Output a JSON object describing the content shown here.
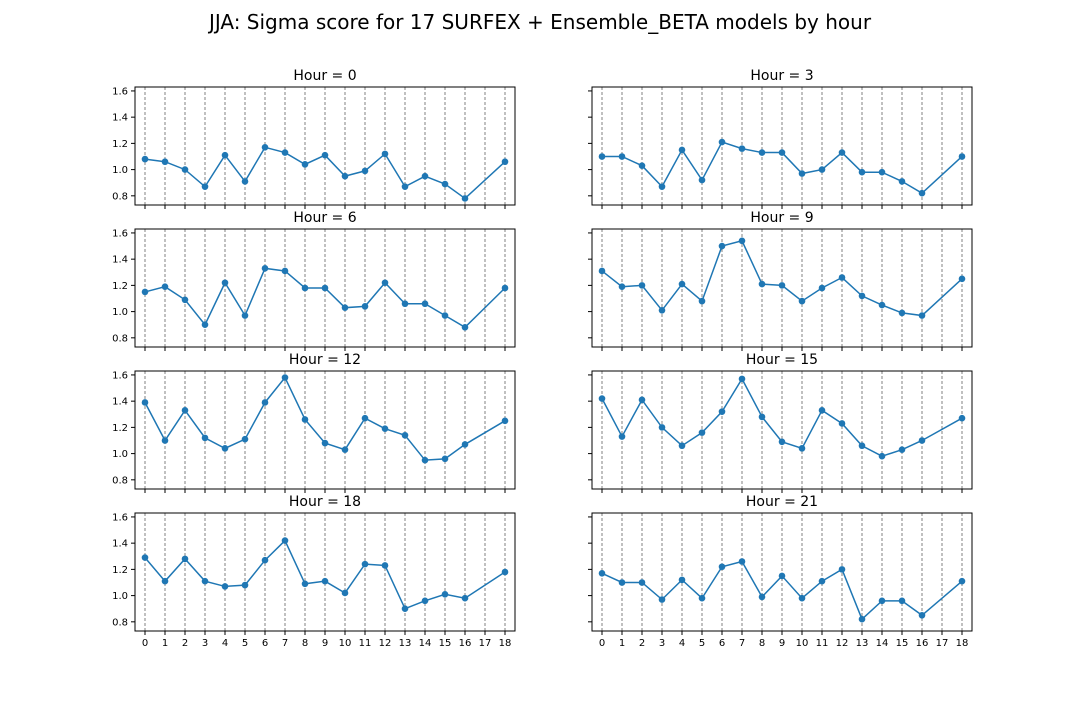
{
  "figure": {
    "title": "JJA: Sigma score for 17 SURFEX + Ensemble_BETA models by hour"
  },
  "colors": {
    "series": "#1f77b4",
    "grid": "#808080",
    "axes": "#000000"
  },
  "chart_data": [
    {
      "type": "line",
      "title": "Hour = 0",
      "x": [
        0,
        1,
        2,
        3,
        4,
        5,
        6,
        7,
        8,
        9,
        10,
        11,
        12,
        13,
        14,
        15,
        16,
        18
      ],
      "y": [
        1.08,
        1.06,
        1.0,
        0.87,
        1.11,
        0.91,
        1.17,
        1.13,
        1.04,
        1.11,
        0.95,
        0.99,
        1.12,
        0.87,
        0.95,
        0.89,
        0.78,
        1.06
      ],
      "xticks": [
        0,
        1,
        2,
        3,
        4,
        5,
        6,
        7,
        8,
        9,
        10,
        11,
        12,
        13,
        14,
        15,
        16,
        17,
        18
      ],
      "yticks": [
        0.8,
        1.0,
        1.2,
        1.4,
        1.6
      ],
      "ylim": [
        0.73,
        1.63
      ],
      "xlim": [
        -0.5,
        18.5
      ],
      "vertical_grid": true,
      "marker": "circle"
    },
    {
      "type": "line",
      "title": "Hour = 3",
      "x": [
        0,
        1,
        2,
        3,
        4,
        5,
        6,
        7,
        8,
        9,
        10,
        11,
        12,
        13,
        14,
        15,
        16,
        18
      ],
      "y": [
        1.1,
        1.1,
        1.03,
        0.87,
        1.15,
        0.92,
        1.21,
        1.16,
        1.13,
        1.13,
        0.97,
        1.0,
        1.13,
        0.98,
        0.98,
        0.91,
        0.82,
        1.1
      ],
      "xticks": [
        0,
        1,
        2,
        3,
        4,
        5,
        6,
        7,
        8,
        9,
        10,
        11,
        12,
        13,
        14,
        15,
        16,
        17,
        18
      ],
      "yticks": [
        0.8,
        1.0,
        1.2,
        1.4,
        1.6
      ],
      "ylim": [
        0.73,
        1.63
      ],
      "xlim": [
        -0.5,
        18.5
      ],
      "vertical_grid": true,
      "marker": "circle"
    },
    {
      "type": "line",
      "title": "Hour = 6",
      "x": [
        0,
        1,
        2,
        3,
        4,
        5,
        6,
        7,
        8,
        9,
        10,
        11,
        12,
        13,
        14,
        15,
        16,
        18
      ],
      "y": [
        1.15,
        1.19,
        1.09,
        0.9,
        1.22,
        0.97,
        1.33,
        1.31,
        1.18,
        1.18,
        1.03,
        1.04,
        1.22,
        1.06,
        1.06,
        0.97,
        0.88,
        1.18
      ],
      "xticks": [
        0,
        1,
        2,
        3,
        4,
        5,
        6,
        7,
        8,
        9,
        10,
        11,
        12,
        13,
        14,
        15,
        16,
        17,
        18
      ],
      "yticks": [
        0.8,
        1.0,
        1.2,
        1.4,
        1.6
      ],
      "ylim": [
        0.73,
        1.63
      ],
      "xlim": [
        -0.5,
        18.5
      ],
      "vertical_grid": true,
      "marker": "circle"
    },
    {
      "type": "line",
      "title": "Hour = 9",
      "x": [
        0,
        1,
        2,
        3,
        4,
        5,
        6,
        7,
        8,
        9,
        10,
        11,
        12,
        13,
        14,
        15,
        16,
        18
      ],
      "y": [
        1.31,
        1.19,
        1.2,
        1.01,
        1.21,
        1.08,
        1.5,
        1.54,
        1.21,
        1.2,
        1.08,
        1.18,
        1.26,
        1.12,
        1.05,
        0.99,
        0.97,
        1.25
      ],
      "xticks": [
        0,
        1,
        2,
        3,
        4,
        5,
        6,
        7,
        8,
        9,
        10,
        11,
        12,
        13,
        14,
        15,
        16,
        17,
        18
      ],
      "yticks": [
        0.8,
        1.0,
        1.2,
        1.4,
        1.6
      ],
      "ylim": [
        0.73,
        1.63
      ],
      "xlim": [
        -0.5,
        18.5
      ],
      "vertical_grid": true,
      "marker": "circle"
    },
    {
      "type": "line",
      "title": "Hour = 12",
      "x": [
        0,
        1,
        2,
        3,
        4,
        5,
        6,
        7,
        8,
        9,
        10,
        11,
        12,
        13,
        14,
        15,
        16,
        18
      ],
      "y": [
        1.39,
        1.1,
        1.33,
        1.12,
        1.04,
        1.11,
        1.39,
        1.58,
        1.26,
        1.08,
        1.03,
        1.27,
        1.19,
        1.14,
        0.95,
        0.96,
        1.07,
        1.25
      ],
      "xticks": [
        0,
        1,
        2,
        3,
        4,
        5,
        6,
        7,
        8,
        9,
        10,
        11,
        12,
        13,
        14,
        15,
        16,
        17,
        18
      ],
      "yticks": [
        0.8,
        1.0,
        1.2,
        1.4,
        1.6
      ],
      "ylim": [
        0.73,
        1.63
      ],
      "xlim": [
        -0.5,
        18.5
      ],
      "vertical_grid": true,
      "marker": "circle"
    },
    {
      "type": "line",
      "title": "Hour = 15",
      "x": [
        0,
        1,
        2,
        3,
        4,
        5,
        6,
        7,
        8,
        9,
        10,
        11,
        12,
        13,
        14,
        15,
        16,
        18
      ],
      "y": [
        1.42,
        1.13,
        1.41,
        1.2,
        1.06,
        1.16,
        1.32,
        1.57,
        1.28,
        1.09,
        1.04,
        1.33,
        1.23,
        1.06,
        0.98,
        1.03,
        1.1,
        1.27
      ],
      "xticks": [
        0,
        1,
        2,
        3,
        4,
        5,
        6,
        7,
        8,
        9,
        10,
        11,
        12,
        13,
        14,
        15,
        16,
        17,
        18
      ],
      "yticks": [
        0.8,
        1.0,
        1.2,
        1.4,
        1.6
      ],
      "ylim": [
        0.73,
        1.63
      ],
      "xlim": [
        -0.5,
        18.5
      ],
      "vertical_grid": true,
      "marker": "circle"
    },
    {
      "type": "line",
      "title": "Hour = 18",
      "x": [
        0,
        1,
        2,
        3,
        4,
        5,
        6,
        7,
        8,
        9,
        10,
        11,
        12,
        13,
        14,
        15,
        16,
        18
      ],
      "y": [
        1.29,
        1.11,
        1.28,
        1.11,
        1.07,
        1.08,
        1.27,
        1.42,
        1.09,
        1.11,
        1.02,
        1.24,
        1.23,
        0.9,
        0.96,
        1.01,
        0.98,
        1.18
      ],
      "xticks": [
        0,
        1,
        2,
        3,
        4,
        5,
        6,
        7,
        8,
        9,
        10,
        11,
        12,
        13,
        14,
        15,
        16,
        17,
        18
      ],
      "yticks": [
        0.8,
        1.0,
        1.2,
        1.4,
        1.6
      ],
      "ylim": [
        0.73,
        1.63
      ],
      "xlim": [
        -0.5,
        18.5
      ],
      "vertical_grid": true,
      "marker": "circle"
    },
    {
      "type": "line",
      "title": "Hour = 21",
      "x": [
        0,
        1,
        2,
        3,
        4,
        5,
        6,
        7,
        8,
        9,
        10,
        11,
        12,
        13,
        14,
        15,
        16,
        18
      ],
      "y": [
        1.17,
        1.1,
        1.1,
        0.97,
        1.12,
        0.98,
        1.22,
        1.26,
        0.99,
        1.15,
        0.98,
        1.11,
        1.2,
        0.82,
        0.96,
        0.96,
        0.85,
        1.11
      ],
      "xticks": [
        0,
        1,
        2,
        3,
        4,
        5,
        6,
        7,
        8,
        9,
        10,
        11,
        12,
        13,
        14,
        15,
        16,
        17,
        18
      ],
      "yticks": [
        0.8,
        1.0,
        1.2,
        1.4,
        1.6
      ],
      "ylim": [
        0.73,
        1.63
      ],
      "xlim": [
        -0.5,
        18.5
      ],
      "vertical_grid": true,
      "marker": "circle"
    }
  ]
}
